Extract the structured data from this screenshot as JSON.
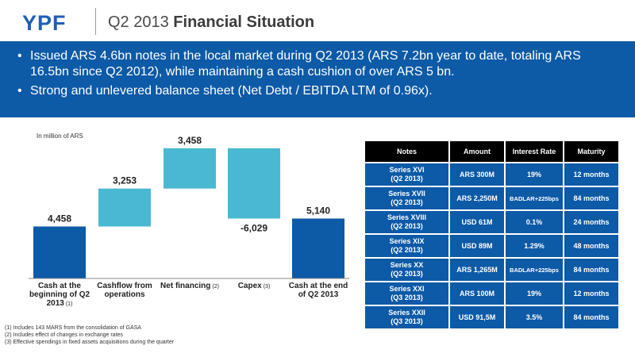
{
  "header": {
    "logo": "YPF",
    "title_prefix": "Q2 2013 ",
    "title_bold": "Financial Situation"
  },
  "bullets": [
    "Issued ARS 4.6bn notes in the local market during Q2 2013 (ARS 7.2bn year to date, totaling ARS 16.5bn since Q2 2012), while maintaining a cash cushion of over ARS 5 bn.",
    "Strong and unlevered balance sheet (Net Debt / EBITDA LTM of 0.96x)."
  ],
  "chart_data": {
    "type": "bar",
    "subtype": "waterfall",
    "unit_note": "In million of ARS",
    "categories": [
      {
        "label": [
          "Cash at the",
          "beginning of Q2",
          "2013"
        ],
        "sup": "(1)"
      },
      {
        "label": [
          "Cashflow from",
          "operations"
        ],
        "sup": ""
      },
      {
        "label": [
          "Net financing"
        ],
        "sup": "(2)"
      },
      {
        "label": [
          "Capex"
        ],
        "sup": "(3)"
      },
      {
        "label": [
          "Cash at the end",
          "of Q2 2013"
        ],
        "sup": ""
      }
    ],
    "values": [
      4458,
      3253,
      3458,
      -6029,
      5140
    ],
    "value_labels": [
      "4,458",
      "3,253",
      "3,458",
      "-6,029",
      "5,140"
    ],
    "kinds": [
      "total",
      "delta",
      "delta",
      "delta",
      "total"
    ],
    "colors": {
      "total": "#0d5aa7",
      "delta": "#4bb8d2"
    },
    "ylim": [
      0,
      11500
    ]
  },
  "footnotes": [
    "(1) Includes 143 MARS from the consolidation of GASA",
    "(2) Includes effect of changes in exchange rates",
    "(3) Effective spendings in fixed assets acquisitions during the quarter"
  ],
  "table": {
    "headers": [
      "Notes",
      "Amount",
      "Interest Rate",
      "Maturity"
    ],
    "rows": [
      {
        "series": "Series XVI",
        "period": "(Q2 2013)",
        "amount": "ARS 300M",
        "rate": "19%",
        "maturity": "12 months"
      },
      {
        "series": "Series XVII",
        "period": "(Q2 2013)",
        "amount": "ARS 2,250M",
        "rate": "BADLAR+225bps",
        "maturity": "84 months"
      },
      {
        "series": "Series XVIII",
        "period": "(Q2 2013)",
        "amount": "USD 61M",
        "rate": "0.1%",
        "maturity": "24 months"
      },
      {
        "series": "Series XIX",
        "period": "(Q2 2013)",
        "amount": "USD 89M",
        "rate": "1.29%",
        "maturity": "48 months"
      },
      {
        "series": "Series XX",
        "period": "(Q2 2013)",
        "amount": "ARS 1,265M",
        "rate": "BADLAR+225bps",
        "maturity": "84 months"
      },
      {
        "series": "Series XXI",
        "period": "(Q3 2013)",
        "amount": "ARS 100M",
        "rate": "19%",
        "maturity": "12 months"
      },
      {
        "series": "Series XXII",
        "period": "(Q3 2013)",
        "amount": "USD 91,5M",
        "rate": "3.5%",
        "maturity": "84 months"
      }
    ]
  }
}
